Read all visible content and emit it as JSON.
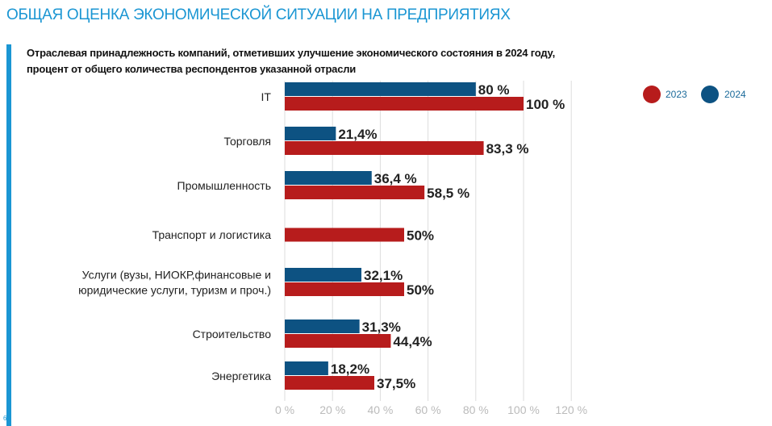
{
  "title": "ОБЩАЯ ОЦЕНКА ЭКОНОМИЧЕСКОЙ СИТУАЦИИ НА ПРЕДПРИЯТИЯХ",
  "subtitle_lines": [
    "Отраслевая принадлежность компаний, отметивших улучшение экономического состояния в 2024 году,",
    "процент от общего количества респондентов указанной отрасли"
  ],
  "page_number": "6",
  "colors": {
    "2023": "#b71c1c",
    "2024": "#0d5282",
    "accent": "#1b96d3"
  },
  "chart_data": {
    "type": "bar",
    "orientation": "horizontal",
    "categories": [
      [
        "IT"
      ],
      [
        "Торговля"
      ],
      [
        "Промышленность"
      ],
      [
        "Транспорт и логистика"
      ],
      [
        "Услуги (вузы, НИОКР,финансовые и",
        "юридические услуги, туризм и проч.)"
      ],
      [
        "Строительство"
      ],
      [
        "Энергетика"
      ]
    ],
    "series": [
      {
        "name": "2024",
        "values": [
          80,
          21.4,
          36.4,
          null,
          32.1,
          31.3,
          18.2
        ],
        "labels": [
          "80 %",
          "21,4%",
          "36,4 %",
          "",
          "32,1%",
          "31,3%",
          "18,2%"
        ]
      },
      {
        "name": "2023",
        "values": [
          100,
          83.3,
          58.5,
          50,
          50,
          44.4,
          37.5
        ],
        "labels": [
          "100 %",
          "83,3 %",
          "58,5 %",
          "50%",
          "50%",
          "44,4%",
          "37,5%"
        ]
      }
    ],
    "xlim": [
      0,
      120
    ],
    "xticks": [
      "0 %",
      "20 %",
      "40 %",
      "60 %",
      "80 %",
      "100 %",
      "120 %"
    ],
    "grid": true,
    "legend": "top-right"
  }
}
